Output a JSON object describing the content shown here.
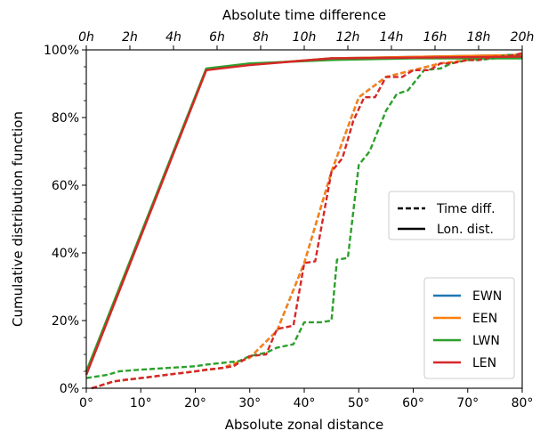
{
  "chart_data": {
    "type": "line",
    "xlabel": "Absolute zonal distance",
    "ylabel": "Cumulative distribution function",
    "top_xlabel": "Absolute time difference",
    "xlim": [
      0,
      80
    ],
    "ylim": [
      0,
      100
    ],
    "x_ticks": [
      {
        "value": 0,
        "label": "0°"
      },
      {
        "value": 10,
        "label": "10°"
      },
      {
        "value": 20,
        "label": "20°"
      },
      {
        "value": 30,
        "label": "30°"
      },
      {
        "value": 40,
        "label": "40°"
      },
      {
        "value": 50,
        "label": "50°"
      },
      {
        "value": 60,
        "label": "60°"
      },
      {
        "value": 70,
        "label": "70°"
      },
      {
        "value": 80,
        "label": "80°"
      }
    ],
    "top_ticks": [
      {
        "value": 0,
        "label": "0h"
      },
      {
        "value": 2,
        "label": "2h"
      },
      {
        "value": 4,
        "label": "4h"
      },
      {
        "value": 6,
        "label": "6h"
      },
      {
        "value": 8,
        "label": "8h"
      },
      {
        "value": 10,
        "label": "10h"
      },
      {
        "value": 12,
        "label": "12h"
      },
      {
        "value": 14,
        "label": "14h"
      },
      {
        "value": 16,
        "label": "16h"
      },
      {
        "value": 18,
        "label": "18h"
      },
      {
        "value": 20,
        "label": "20h"
      }
    ],
    "y_ticks": [
      {
        "value": 0,
        "label": "0%"
      },
      {
        "value": 20,
        "label": "20%"
      },
      {
        "value": 40,
        "label": "40%"
      },
      {
        "value": 60,
        "label": "60%"
      },
      {
        "value": 80,
        "label": "80%"
      },
      {
        "value": 100,
        "label": "100%"
      }
    ],
    "style_legend": [
      {
        "label": "Time diff.",
        "dash": "dashed"
      },
      {
        "label": "Lon. dist.",
        "dash": "solid"
      }
    ],
    "series": [
      {
        "name": "EWN",
        "color": "#1f77b4",
        "lon_dist": [
          [
            0,
            4
          ],
          [
            22,
            94
          ],
          [
            25,
            95
          ],
          [
            45,
            97.5
          ],
          [
            80,
            98.5
          ]
        ],
        "time_diff": [
          [
            1,
            0
          ],
          [
            5,
            2
          ],
          [
            10,
            3
          ],
          [
            20,
            5
          ],
          [
            25,
            6
          ],
          [
            30,
            9
          ],
          [
            35,
            17
          ],
          [
            40,
            37
          ],
          [
            45,
            64
          ],
          [
            50,
            86
          ],
          [
            55,
            92
          ],
          [
            60,
            94
          ],
          [
            65,
            96
          ],
          [
            70,
            97
          ],
          [
            75,
            98
          ],
          [
            80,
            98.5
          ]
        ]
      },
      {
        "name": "EEN",
        "color": "#ff7f0e",
        "lon_dist": [
          [
            0,
            4
          ],
          [
            22,
            94
          ],
          [
            25,
            95
          ],
          [
            45,
            97.5
          ],
          [
            80,
            98.5
          ]
        ],
        "time_diff": [
          [
            1,
            0
          ],
          [
            5,
            2
          ],
          [
            10,
            3
          ],
          [
            20,
            5
          ],
          [
            25,
            6
          ],
          [
            30,
            9
          ],
          [
            35,
            17
          ],
          [
            40,
            37
          ],
          [
            45,
            64
          ],
          [
            50,
            86
          ],
          [
            55,
            92
          ],
          [
            60,
            94
          ],
          [
            65,
            96
          ],
          [
            70,
            97
          ],
          [
            75,
            98
          ],
          [
            80,
            98.5
          ]
        ]
      },
      {
        "name": "LWN",
        "color": "#2ca02c",
        "lon_dist": [
          [
            0,
            5
          ],
          [
            22,
            94.5
          ],
          [
            30,
            96
          ],
          [
            45,
            97
          ],
          [
            60,
            97.5
          ],
          [
            80,
            97.5
          ]
        ],
        "time_diff": [
          [
            0,
            3
          ],
          [
            2,
            3.5
          ],
          [
            4,
            4
          ],
          [
            6,
            5
          ],
          [
            10,
            5.5
          ],
          [
            15,
            6
          ],
          [
            20,
            6.5
          ],
          [
            22,
            7
          ],
          [
            25,
            7.5
          ],
          [
            28,
            8
          ],
          [
            30,
            9.5
          ],
          [
            33,
            10.5
          ],
          [
            35,
            12
          ],
          [
            38,
            13
          ],
          [
            40,
            19.5
          ],
          [
            42,
            19.5
          ],
          [
            43,
            19.5
          ],
          [
            45,
            20
          ],
          [
            46,
            38
          ],
          [
            48,
            38.5
          ],
          [
            50,
            66
          ],
          [
            52,
            70
          ],
          [
            55,
            82
          ],
          [
            57,
            87
          ],
          [
            59,
            88
          ],
          [
            62,
            94
          ],
          [
            65,
            94.5
          ],
          [
            67,
            96
          ],
          [
            70,
            97
          ],
          [
            72,
            97
          ],
          [
            75,
            97.5
          ],
          [
            77,
            98.5
          ],
          [
            80,
            98.5
          ]
        ]
      },
      {
        "name": "LEN",
        "color": "#d62728",
        "lon_dist": [
          [
            0,
            4
          ],
          [
            22,
            94
          ],
          [
            30,
            95.5
          ],
          [
            45,
            97.5
          ],
          [
            80,
            98
          ]
        ],
        "time_diff": [
          [
            1,
            0
          ],
          [
            3,
            1
          ],
          [
            5,
            2
          ],
          [
            7,
            2.5
          ],
          [
            10,
            3
          ],
          [
            15,
            4
          ],
          [
            20,
            5
          ],
          [
            22,
            5.5
          ],
          [
            25,
            6
          ],
          [
            27,
            6.5
          ],
          [
            30,
            9.5
          ],
          [
            33,
            10
          ],
          [
            35,
            17.5
          ],
          [
            38,
            18.5
          ],
          [
            40,
            37
          ],
          [
            42,
            37.5
          ],
          [
            45,
            64
          ],
          [
            47,
            68
          ],
          [
            49,
            79
          ],
          [
            51,
            86
          ],
          [
            53,
            86
          ],
          [
            55,
            92
          ],
          [
            58,
            92
          ],
          [
            60,
            94
          ],
          [
            63,
            94
          ],
          [
            65,
            96
          ],
          [
            67,
            96
          ],
          [
            70,
            97
          ],
          [
            72,
            97
          ],
          [
            75,
            98
          ],
          [
            77,
            98
          ],
          [
            80,
            99
          ]
        ]
      }
    ]
  }
}
